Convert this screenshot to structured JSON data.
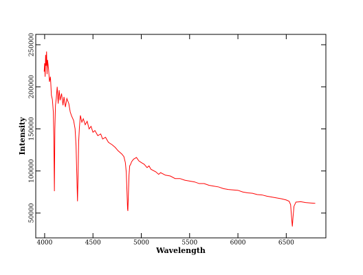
{
  "chart_data": {
    "type": "line",
    "xlabel": "Wavelength",
    "ylabel": "Intensity",
    "xlim": [
      3908,
      6910
    ],
    "ylim": [
      20500,
      262300
    ],
    "xticks": [
      4000,
      4500,
      5000,
      5500,
      6000,
      6500
    ],
    "yticks": [
      50000,
      100000,
      150000,
      200000,
      250000
    ],
    "x": [
      3995,
      4000,
      4005,
      4010,
      4015,
      4020,
      4025,
      4030,
      4040,
      4050,
      4060,
      4070,
      4080,
      4090,
      4095,
      4101,
      4106,
      4112,
      4120,
      4130,
      4140,
      4150,
      4160,
      4175,
      4190,
      4200,
      4215,
      4230,
      4250,
      4265,
      4280,
      4300,
      4315,
      4325,
      4334,
      4340,
      4346,
      4352,
      4360,
      4370,
      4385,
      4400,
      4420,
      4440,
      4460,
      4480,
      4500,
      4520,
      4550,
      4580,
      4600,
      4630,
      4660,
      4700,
      4730,
      4760,
      4800,
      4820,
      4835,
      4845,
      4852,
      4858,
      4861,
      4866,
      4873,
      4880,
      4890,
      4900,
      4920,
      4950,
      4975,
      5000,
      5030,
      5060,
      5080,
      5100,
      5150,
      5180,
      5200,
      5250,
      5300,
      5350,
      5400,
      5450,
      5500,
      5550,
      5600,
      5650,
      5700,
      5750,
      5800,
      5850,
      5900,
      5950,
      6000,
      6050,
      6100,
      6150,
      6200,
      6250,
      6300,
      6350,
      6400,
      6450,
      6500,
      6530,
      6545,
      6555,
      6563,
      6570,
      6580,
      6600,
      6650,
      6700,
      6750,
      6800
    ],
    "series": [
      {
        "color": "#ff0000",
        "values": [
          218000,
          228000,
          212000,
          238000,
          225000,
          242000,
          215000,
          232000,
          222000,
          206000,
          212000,
          190000,
          185000,
          170000,
          140000,
          76000,
          150000,
          178000,
          186000,
          200000,
          180000,
          196000,
          184000,
          192000,
          178000,
          188000,
          176000,
          186000,
          180000,
          170000,
          165000,
          160000,
          150000,
          130000,
          90000,
          64000,
          95000,
          135000,
          152000,
          166000,
          158000,
          162000,
          155000,
          159000,
          150000,
          153000,
          146000,
          148000,
          142000,
          144000,
          138000,
          140000,
          134000,
          131000,
          128000,
          124000,
          120000,
          117000,
          110000,
          98000,
          75000,
          55000,
          52500,
          70000,
          95000,
          106000,
          108000,
          111000,
          114000,
          116000,
          112000,
          110000,
          108000,
          104000,
          106000,
          102000,
          99000,
          96000,
          98000,
          95000,
          94000,
          91000,
          91000,
          89000,
          88000,
          87000,
          85000,
          85000,
          83000,
          82000,
          81000,
          79000,
          78000,
          77500,
          77000,
          75000,
          74000,
          73500,
          72000,
          71500,
          70000,
          69000,
          68000,
          67000,
          65500,
          64000,
          60000,
          45000,
          34000,
          45000,
          58000,
          63000,
          63500,
          62500,
          62000,
          61500
        ]
      }
    ]
  }
}
